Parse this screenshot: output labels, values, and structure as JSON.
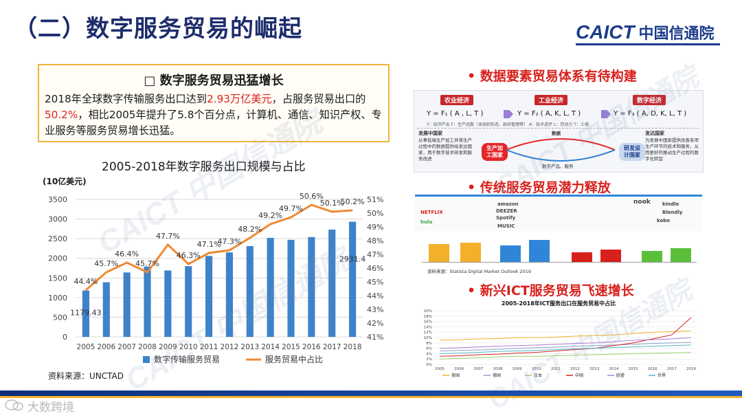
{
  "page_title": "（二）数字服务贸易的崛起",
  "logo": {
    "brand": "CAICT",
    "name": "中国信通院"
  },
  "textbox": {
    "heading": "□  数字服务贸易迅猛增长",
    "body_p1": "2018年全球数字传输服务出口达到",
    "body_highlight1": "2.93万亿美元",
    "body_p2": "，占服务贸易出口的",
    "body_highlight2": "50.2%",
    "body_p3": "，相比2005年提升了5.8个百分点，计算机、通信、知识产权、专业服务等服务贸易增长迅猛。"
  },
  "source_left": "资料来源：UNCTAD",
  "bullets": {
    "b1": "• 数据要素贸易体系有待构建",
    "b2": "• 传统服务贸易潜力释放",
    "b3": "• 新兴ICT服务贸易飞速增长"
  },
  "panel1": {
    "tags": [
      "农业经济",
      "工业经济",
      "数字经济"
    ],
    "formulas": [
      "Y = F₁ ( A , L, T )",
      "Y = F₂ ( A, K, L, T )",
      "Y = F₃ ( A, D, K, L, T )"
    ],
    "legend": "Y：经济产出  F：生产函数（含组织形态、政府管理等） A：技术进步  L：劳动力  T：土地",
    "left_head": "发展中国家",
    "left_note": "从事低端生产加工并将生产过程中的数据提供给发达国家，用于数字技术研发和服务改进",
    "mid_head": "数据",
    "left_circle": "生产加工国家",
    "right_circle": "研发设计国家",
    "bottom": "数字产品、服务",
    "right_head": "发达国家",
    "right_note": "为发展中国家提供改善各项生产环节的技术和服务，从而更好的推动生产过程的数字化转型"
  },
  "panel2": {
    "logos": [
      "amazon",
      "DEEZER",
      "NETFLIX",
      "Spotify",
      "hulu",
      "MUSIC",
      "nook",
      "kobo",
      "Blendly",
      "kindle"
    ],
    "source": "资料来源：Statista Digital Market Outlook 2019",
    "bar_color_a": "#f3b02a",
    "bar_color_b": "#2f86d8",
    "bar_color_c": "#d8201c",
    "bar_color_d": "#5bbf3a"
  },
  "panel3": {
    "title": "2005-2018年ICT服务出口在服务贸易中占比",
    "y_ticks": [
      "20%",
      "18%",
      "16%",
      "14%",
      "12%",
      "10%",
      "8%",
      "6%",
      "4%",
      "2%",
      "0%"
    ],
    "x_ticks": [
      "2005",
      "2006",
      "2007",
      "2008",
      "2009",
      "2010",
      "2011",
      "2012",
      "2013",
      "2014",
      "2015",
      "2016",
      "2017",
      "2018"
    ],
    "legend": [
      "美国",
      "德国",
      "日本",
      "中国",
      "欧盟",
      "世界"
    ]
  },
  "wechat": "大数跨境",
  "chart_data": {
    "type": "bar",
    "title": "2005-2018年数字服务出口规模与占比",
    "ylabel": "(10亿美元)",
    "categories": [
      "2005",
      "2006",
      "2007",
      "2008",
      "2009",
      "2010",
      "2011",
      "2012",
      "2013",
      "2014",
      "2015",
      "2016",
      "2017",
      "2018"
    ],
    "ylim": [
      0,
      3500
    ],
    "y2lim": [
      41,
      51
    ],
    "y_ticks": [
      "0",
      "500",
      "1000",
      "1500",
      "2000",
      "2500",
      "3000",
      "3500"
    ],
    "y2_ticks": [
      "41%",
      "42%",
      "43%",
      "44%",
      "45%",
      "46%",
      "47%",
      "48%",
      "49%",
      "50%",
      "51%"
    ],
    "series": [
      {
        "name": "数字传输服务贸易",
        "type": "bar",
        "color": "#3e83c9",
        "values": [
          1179.43,
          1390,
          1640,
          1790,
          1690,
          1800,
          2060,
          2150,
          2310,
          2520,
          2470,
          2540,
          2730,
          2931.4
        ],
        "labels": [
          "1179.43",
          "",
          "",
          "",
          "",
          "",
          "",
          "",
          "",
          "",
          "",
          "",
          "",
          "2931.4"
        ]
      },
      {
        "name": "服务贸易中占比",
        "type": "line",
        "color": "#ec8a34",
        "axis": "right",
        "values": [
          44.4,
          45.7,
          46.4,
          45.7,
          47.7,
          46.3,
          47.1,
          47.3,
          48.2,
          49.2,
          49.7,
          50.6,
          50.1,
          50.2
        ],
        "labels": [
          "44.4%",
          "45.7%",
          "46.4%",
          "45.7%",
          "47.7%",
          "46.3%",
          "47.1%",
          "47.3%",
          "48.2%",
          "49.2%",
          "49.7%",
          "50.6%",
          "50.1%",
          "50.2%"
        ]
      }
    ],
    "legend_position": "bottom",
    "grid": true
  }
}
